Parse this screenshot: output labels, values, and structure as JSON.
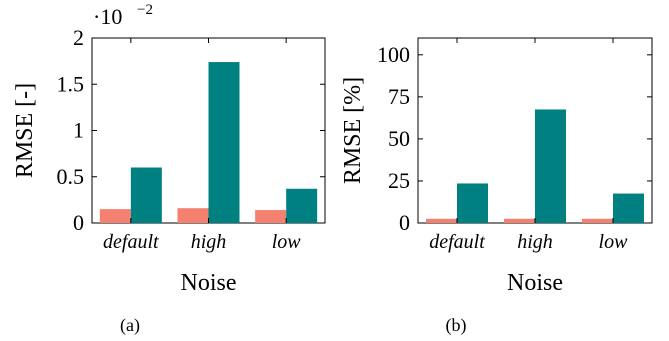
{
  "chart_data": [
    {
      "type": "bar",
      "caption": "(a)",
      "xlabel": "Noise",
      "ylabel": "RMSE [-]",
      "y_multiplier": "·10",
      "y_multiplier_exp": "−2",
      "ylim": [
        0,
        2
      ],
      "yticks": [
        "0",
        "0.5",
        "1",
        "1.5",
        "2"
      ],
      "yticks_values": [
        0,
        0.5,
        1,
        1.5,
        2
      ],
      "categories": [
        "default",
        "high",
        "low"
      ],
      "series": [
        {
          "color": "#f4806f",
          "values": [
            0.15,
            0.16,
            0.14
          ]
        },
        {
          "color": "#008080",
          "values": [
            0.6,
            1.74,
            0.37
          ]
        }
      ]
    },
    {
      "type": "bar",
      "caption": "(b)",
      "xlabel": "Noise",
      "ylabel": "RMSE [%]",
      "ylim": [
        0,
        110
      ],
      "yticks": [
        "0",
        "25",
        "50",
        "75",
        "100"
      ],
      "yticks_values": [
        0,
        25,
        50,
        75,
        100
      ],
      "categories": [
        "default",
        "high",
        "low"
      ],
      "series": [
        {
          "color": "#f4806f",
          "values": [
            2.5,
            2.5,
            2.5
          ]
        },
        {
          "color": "#008080",
          "values": [
            23.5,
            67.5,
            17.5
          ]
        }
      ]
    }
  ]
}
